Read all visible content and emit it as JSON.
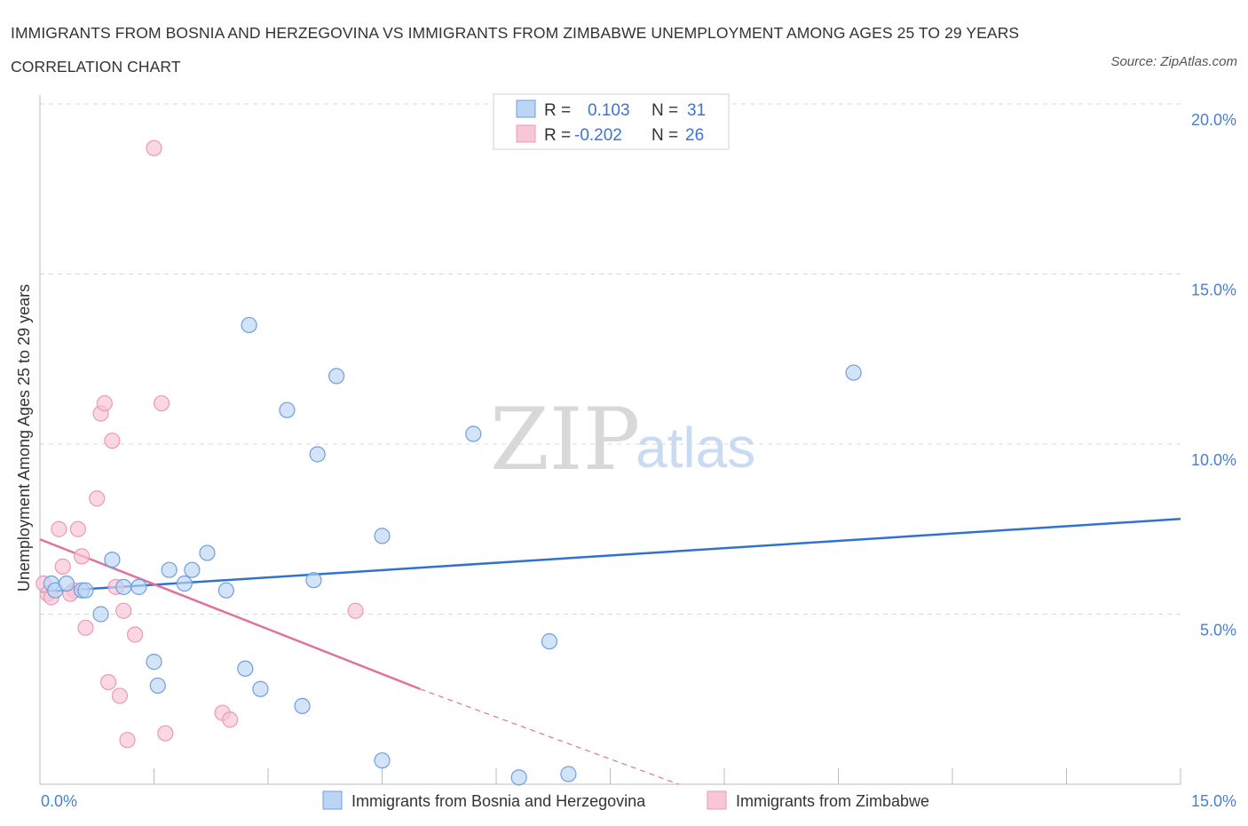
{
  "title": "IMMIGRANTS FROM BOSNIA AND HERZEGOVINA VS IMMIGRANTS FROM ZIMBABWE UNEMPLOYMENT AMONG AGES 25 TO 29 YEARS CORRELATION CHART",
  "source": "Source: ZipAtlas.com",
  "watermark": {
    "zip": "ZIP",
    "atlas": "atlas"
  },
  "legend": {
    "rows": [
      {
        "r_label": "R =",
        "r_value": "0.103",
        "n_label": "N =",
        "n_value": "31"
      },
      {
        "r_label": "R =",
        "r_value": "-0.202",
        "n_label": "N =",
        "n_value": "26"
      }
    ]
  },
  "colors": {
    "blue_fill": "#bcd5f5",
    "blue_stroke": "#6e9ee0",
    "blue_line": "#2f72d0",
    "pink_fill": "#f8c6d6",
    "pink_stroke": "#e99ab5",
    "pink_line": "#e0719c",
    "grid": "#d9d9d9",
    "tick_text": "#4a7fd0"
  },
  "chart_data": {
    "type": "scatter",
    "title": "IMMIGRANTS FROM BOSNIA AND HERZEGOVINA VS IMMIGRANTS FROM ZIMBABWE UNEMPLOYMENT AMONG AGES 25 TO 29 YEARS CORRELATION CHART",
    "xlabel": "",
    "ylabel": "Unemployment Among Ages 25 to 29 years",
    "xlim": [
      0,
      15
    ],
    "ylim": [
      0,
      20
    ],
    "x_tick_labels": [
      "0.0%",
      "15.0%"
    ],
    "y_ticks": [
      5,
      10,
      15,
      20
    ],
    "y_tick_labels": [
      "5.0%",
      "10.0%",
      "15.0%",
      "20.0%"
    ],
    "grid": true,
    "series": [
      {
        "name": "Immigrants from Bosnia and Herzegovina",
        "color": "blue",
        "r": 0.103,
        "n": 31,
        "trend": {
          "x": [
            0.0,
            15.0
          ],
          "y": [
            5.65,
            7.8
          ]
        },
        "points": [
          [
            0.15,
            5.9
          ],
          [
            0.2,
            5.7
          ],
          [
            0.35,
            5.9
          ],
          [
            0.55,
            5.7
          ],
          [
            0.6,
            5.7
          ],
          [
            0.8,
            5.0
          ],
          [
            0.95,
            6.6
          ],
          [
            1.1,
            5.8
          ],
          [
            1.3,
            5.8
          ],
          [
            1.5,
            3.6
          ],
          [
            1.55,
            2.9
          ],
          [
            1.7,
            6.3
          ],
          [
            1.9,
            5.9
          ],
          [
            2.0,
            6.3
          ],
          [
            2.2,
            6.8
          ],
          [
            2.45,
            5.7
          ],
          [
            2.7,
            3.4
          ],
          [
            2.75,
            13.5
          ],
          [
            2.9,
            2.8
          ],
          [
            3.25,
            11.0
          ],
          [
            3.45,
            2.3
          ],
          [
            3.6,
            6.0
          ],
          [
            3.65,
            9.7
          ],
          [
            3.9,
            12.0
          ],
          [
            4.5,
            7.3
          ],
          [
            4.5,
            0.7
          ],
          [
            5.7,
            10.3
          ],
          [
            6.3,
            0.2
          ],
          [
            6.7,
            4.2
          ],
          [
            6.95,
            0.3
          ],
          [
            10.7,
            12.1
          ]
        ]
      },
      {
        "name": "Immigrants from Zimbabwe",
        "color": "pink",
        "r": -0.202,
        "n": 26,
        "trend": {
          "x": [
            0.0,
            5.0
          ],
          "y": [
            7.2,
            2.8
          ]
        },
        "trend_dashed": {
          "x": [
            5.0,
            8.4
          ],
          "y": [
            2.8,
            0.0
          ]
        },
        "points": [
          [
            0.05,
            5.9
          ],
          [
            0.1,
            5.6
          ],
          [
            0.15,
            5.5
          ],
          [
            0.25,
            7.5
          ],
          [
            0.3,
            6.4
          ],
          [
            0.45,
            5.7
          ],
          [
            0.5,
            7.5
          ],
          [
            0.55,
            6.7
          ],
          [
            0.6,
            4.6
          ],
          [
            0.75,
            8.4
          ],
          [
            0.8,
            10.9
          ],
          [
            0.85,
            11.2
          ],
          [
            0.9,
            3.0
          ],
          [
            0.95,
            10.1
          ],
          [
            1.0,
            5.8
          ],
          [
            1.05,
            2.6
          ],
          [
            1.1,
            5.1
          ],
          [
            1.15,
            1.3
          ],
          [
            1.25,
            4.4
          ],
          [
            1.5,
            18.7
          ],
          [
            1.6,
            11.2
          ],
          [
            1.65,
            1.5
          ],
          [
            2.4,
            2.1
          ],
          [
            2.5,
            1.9
          ],
          [
            4.15,
            5.1
          ],
          [
            0.4,
            5.6
          ]
        ]
      }
    ]
  },
  "bottom_legend": {
    "items": [
      "Immigrants from Bosnia and Herzegovina",
      "Immigrants from Zimbabwe"
    ]
  }
}
